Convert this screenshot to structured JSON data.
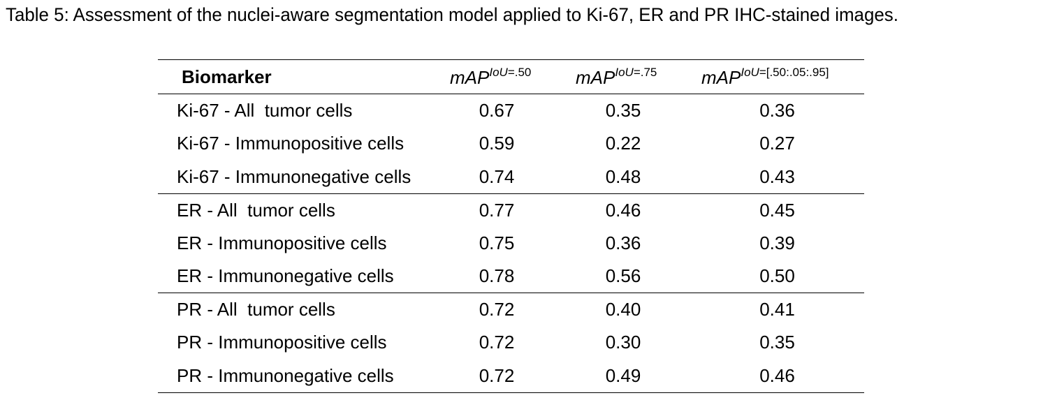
{
  "caption": "Table 5: Assessment of the nuclei-aware segmentation model applied to Ki-67, ER and PR IHC-stained images.",
  "table": {
    "header": {
      "biomarker": "Biomarker",
      "metrics": [
        {
          "base": "mAP",
          "sup_italic": "IoU",
          "sup_rest": "=.50"
        },
        {
          "base": "mAP",
          "sup_italic": "IoU",
          "sup_rest": "=.75"
        },
        {
          "base": "mAP",
          "sup_italic": "IoU",
          "sup_rest": "=[.50:.05:.95]"
        }
      ]
    },
    "groups": [
      {
        "rows": [
          {
            "name": "Ki-67 - All  tumor cells",
            "v1": "0.67",
            "v2": "0.35",
            "v3": "0.36"
          },
          {
            "name": "Ki-67 - Immunopositive cells",
            "v1": "0.59",
            "v2": "0.22",
            "v3": "0.27"
          },
          {
            "name": "Ki-67 - Immunonegative cells",
            "v1": "0.74",
            "v2": "0.48",
            "v3": "0.43"
          }
        ]
      },
      {
        "rows": [
          {
            "name": "ER - All  tumor cells",
            "v1": "0.77",
            "v2": "0.46",
            "v3": "0.45"
          },
          {
            "name": "ER - Immunopositive cells",
            "v1": "0.75",
            "v2": "0.36",
            "v3": "0.39"
          },
          {
            "name": "ER - Immunonegative cells",
            "v1": "0.78",
            "v2": "0.56",
            "v3": "0.50"
          }
        ]
      },
      {
        "rows": [
          {
            "name": "PR - All  tumor cells",
            "v1": "0.72",
            "v2": "0.40",
            "v3": "0.41"
          },
          {
            "name": "PR - Immunopositive cells",
            "v1": "0.72",
            "v2": "0.30",
            "v3": "0.35"
          },
          {
            "name": "PR - Immunonegative cells",
            "v1": "0.72",
            "v2": "0.49",
            "v3": "0.46"
          }
        ]
      }
    ]
  }
}
